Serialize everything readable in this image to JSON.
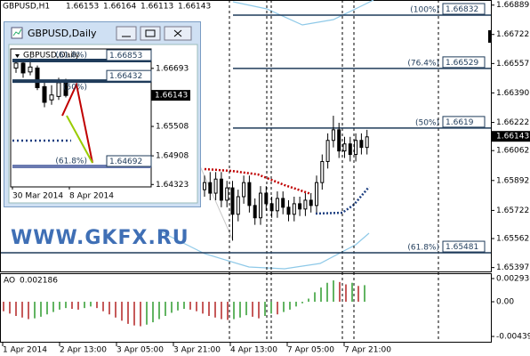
{
  "chart_data": [
    {
      "type": "candlestick",
      "title": "GBPUSD,H1",
      "ohlc_header": [
        1.66153,
        1.66164,
        1.66113,
        1.66143
      ],
      "ylim": [
        1.65375,
        1.66918
      ],
      "yticks": [
        1.66889,
        1.66722,
        1.66557,
        {
          "value": 1.6639,
          "label": "1.66390"
        },
        1.66222,
        1.66062,
        1.65892,
        1.65722,
        1.65562,
        1.65397
      ],
      "current": 1.66143,
      "levels": [
        {
          "value": 1.66832,
          "label": "(100%)"
        },
        {
          "value": 1.66529,
          "label": "(76.4%)"
        },
        {
          "value": 1.6619,
          "label": "(50%)"
        },
        {
          "value": 1.65481,
          "label": "(61.8%)"
        }
      ],
      "categories": [
        "1 Apr 2014",
        "2 Apr 13:00",
        "3 Apr 05:00",
        "3 Apr 21:00",
        "4 Apr 13:00",
        "7 Apr 05:00",
        "7 Apr 21:00"
      ],
      "open": [
        1.6584,
        1.6588,
        1.6582,
        1.659,
        1.6578,
        1.6585,
        1.657,
        1.658,
        1.6588,
        1.6575,
        1.6568,
        1.6582,
        1.6576,
        1.6572,
        1.6579,
        1.6574,
        1.657,
        1.6576,
        1.6573,
        1.6578,
        1.6575,
        1.6588,
        1.66,
        1.6612,
        1.6618,
        1.6606,
        1.661,
        1.6604,
        1.6612,
        1.6608
      ],
      "high": [
        1.6592,
        1.6594,
        1.6594,
        1.6594,
        1.6589,
        1.6589,
        1.6584,
        1.6592,
        1.6592,
        1.6579,
        1.6586,
        1.6586,
        1.658,
        1.6583,
        1.6583,
        1.6578,
        1.658,
        1.658,
        1.6582,
        1.6582,
        1.6592,
        1.6604,
        1.6616,
        1.6626,
        1.6622,
        1.6614,
        1.6614,
        1.6616,
        1.6616,
        1.6618
      ],
      "low": [
        1.658,
        1.6578,
        1.6578,
        1.6574,
        1.6574,
        1.6555,
        1.6566,
        1.6576,
        1.6571,
        1.6564,
        1.6564,
        1.6572,
        1.6568,
        1.6568,
        1.657,
        1.6566,
        1.6566,
        1.6569,
        1.6569,
        1.6571,
        1.6571,
        1.6584,
        1.6596,
        1.6608,
        1.6602,
        1.6602,
        1.66,
        1.66,
        1.6604,
        1.6604
      ],
      "close": [
        1.6588,
        1.6582,
        1.659,
        1.6578,
        1.6585,
        1.657,
        1.658,
        1.6588,
        1.6575,
        1.6568,
        1.6582,
        1.6576,
        1.6572,
        1.6579,
        1.6574,
        1.657,
        1.6576,
        1.6573,
        1.6578,
        1.6575,
        1.6588,
        1.66,
        1.6612,
        1.6618,
        1.6606,
        1.661,
        1.6604,
        1.6612,
        1.6608,
        1.6614
      ]
    },
    {
      "type": "bar",
      "title": "AO",
      "title_value": 0.002186,
      "ylim": [
        -0.00518,
        0.00361
      ],
      "yticks": [
        0.002936,
        {
          "value": 0,
          "label": "0.00"
        },
        -0.004395
      ],
      "up_color": "#2e9b2e",
      "down_color": "#b22222",
      "values": [
        -0.0012,
        -0.0015,
        -0.0018,
        -0.002,
        -0.0022,
        -0.0021,
        -0.0019,
        -0.0016,
        -0.0013,
        -0.001,
        -0.0008,
        -0.0009,
        -0.001,
        -0.0008,
        -0.0006,
        -0.0008,
        -0.0012,
        -0.0016,
        -0.002,
        -0.0024,
        -0.0028,
        -0.003,
        -0.0031,
        -0.0029,
        -0.0026,
        -0.0022,
        -0.0018,
        -0.0014,
        -0.0011,
        -0.0009,
        -0.001,
        -0.0012,
        -0.0015,
        -0.0018,
        -0.002,
        -0.0022,
        -0.0023,
        -0.0022,
        -0.002,
        -0.0017,
        -0.0019,
        -0.0021,
        -0.0018,
        -0.0015,
        -0.0016,
        -0.0013,
        -0.001,
        -0.0006,
        -0.0002,
        0.0004,
        0.0012,
        0.0018,
        0.0024,
        0.0027,
        0.0025,
        0.0022,
        0.0024,
        0.002,
        0.0021
      ]
    },
    {
      "type": "candlestick",
      "title": "GBPUSD,Daily",
      "ylim": [
        1.64274,
        1.67089
      ],
      "yticks": [
        1.66693,
        1.65508,
        1.64908,
        1.64323
      ],
      "current": 1.66143,
      "levels": [
        {
          "value": 1.66853,
          "label": "(61.8%)"
        },
        {
          "value": 1.66432,
          "label": "(50%)"
        },
        {
          "value": 1.64692,
          "label": "(61.8%)"
        }
      ],
      "categories": [
        "30 Mar 2014",
        "8 Apr 2014"
      ],
      "open": [
        1.667,
        1.668,
        1.6662,
        1.667,
        1.6632,
        1.6605,
        1.6612,
        1.664
      ],
      "high": [
        1.6688,
        1.6685,
        1.669,
        1.6675,
        1.664,
        1.6635,
        1.665,
        1.6648
      ],
      "low": [
        1.666,
        1.665,
        1.6655,
        1.6625,
        1.659,
        1.6595,
        1.6605,
        1.661
      ],
      "close": [
        1.668,
        1.666,
        1.6672,
        1.663,
        1.66,
        1.6615,
        1.664,
        1.6614
      ]
    }
  ],
  "watermark": "WWW.GKFX.RU"
}
